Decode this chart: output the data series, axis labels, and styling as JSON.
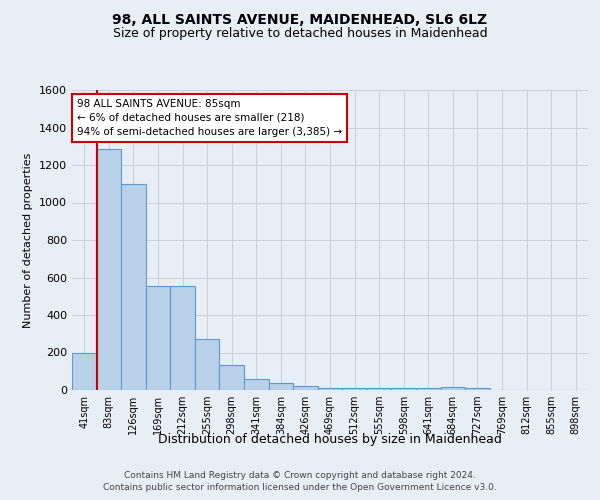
{
  "title": "98, ALL SAINTS AVENUE, MAIDENHEAD, SL6 6LZ",
  "subtitle": "Size of property relative to detached houses in Maidenhead",
  "xlabel": "Distribution of detached houses by size in Maidenhead",
  "ylabel": "Number of detached properties",
  "footer_line1": "Contains HM Land Registry data © Crown copyright and database right 2024.",
  "footer_line2": "Contains public sector information licensed under the Open Government Licence v3.0.",
  "bar_labels": [
    "41sqm",
    "83sqm",
    "126sqm",
    "169sqm",
    "212sqm",
    "255sqm",
    "298sqm",
    "341sqm",
    "384sqm",
    "426sqm",
    "469sqm",
    "512sqm",
    "555sqm",
    "598sqm",
    "641sqm",
    "684sqm",
    "727sqm",
    "769sqm",
    "812sqm",
    "855sqm",
    "898sqm"
  ],
  "bar_values": [
    196,
    1285,
    1100,
    553,
    553,
    270,
    135,
    60,
    35,
    20,
    13,
    10,
    10,
    10,
    10,
    17,
    10,
    0,
    0,
    0,
    0
  ],
  "bar_color": "#b8d0e8",
  "bar_edge_color": "#5b9bd5",
  "vline_x_index": 1,
  "vline_color": "#cc0000",
  "ylim": [
    0,
    1600
  ],
  "yticks": [
    0,
    200,
    400,
    600,
    800,
    1000,
    1200,
    1400,
    1600
  ],
  "annotation_line1": "98 ALL SAINTS AVENUE: 85sqm",
  "annotation_line2": "← 6% of detached houses are smaller (218)",
  "annotation_line3": "94% of semi-detached houses are larger (3,385) →",
  "annotation_box_color": "#ffffff",
  "annotation_border_color": "#cc0000",
  "bg_color": "#e8eef5",
  "grid_color": "#c8d0da",
  "title_fontsize": 10,
  "subtitle_fontsize": 9
}
